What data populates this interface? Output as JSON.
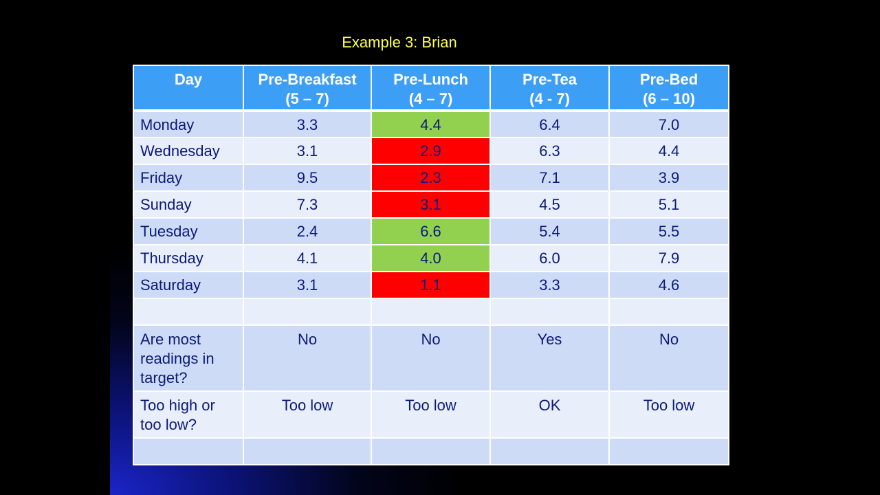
{
  "slide": {
    "title": "Example 3: Brian"
  },
  "table": {
    "headers": [
      {
        "line1": "Day",
        "line2": ""
      },
      {
        "line1": "Pre-Breakfast",
        "line2": "(5 – 7)"
      },
      {
        "line1": "Pre-Lunch",
        "line2": "(4 – 7)"
      },
      {
        "line1": "Pre-Tea",
        "line2": "(4 - 7)"
      },
      {
        "line1": "Pre-Bed",
        "line2": "(6 – 10)"
      }
    ],
    "rows": [
      {
        "day": "Monday",
        "values": [
          "3.3",
          "4.4",
          "6.4",
          "7.0"
        ]
      },
      {
        "day": "Wednesday",
        "values": [
          "3.1",
          "2.9",
          "6.3",
          "4.4"
        ]
      },
      {
        "day": "Friday",
        "values": [
          "9.5",
          "2.3",
          "7.1",
          "3.9"
        ]
      },
      {
        "day": "Sunday",
        "values": [
          "7.3",
          "3.1",
          "4.5",
          "5.1"
        ]
      },
      {
        "day": "Tuesday",
        "values": [
          "2.4",
          "6.6",
          "5.4",
          "5.5"
        ]
      },
      {
        "day": "Thursday",
        "values": [
          "4.1",
          "4.0",
          "6.0",
          "7.9"
        ]
      },
      {
        "day": "Saturday",
        "values": [
          "3.1",
          "1.1",
          "3.3",
          "4.6"
        ]
      }
    ],
    "lunch_status": [
      "in-range",
      "low",
      "low",
      "low",
      "in-range",
      "in-range",
      "low"
    ],
    "in_target_question": {
      "label": "Are most readings in target?",
      "values": [
        "No",
        "No",
        "Yes",
        "No"
      ]
    },
    "high_low_question": {
      "label": "Too high or too low?",
      "values": [
        "Too low",
        "Too low",
        "OK",
        "Too low"
      ]
    },
    "colors": {
      "header": "#3d9ef5",
      "in_range": "#92d050",
      "low": "#ff0000",
      "title": "#ffff4d",
      "text": "#0b1a7a"
    }
  }
}
